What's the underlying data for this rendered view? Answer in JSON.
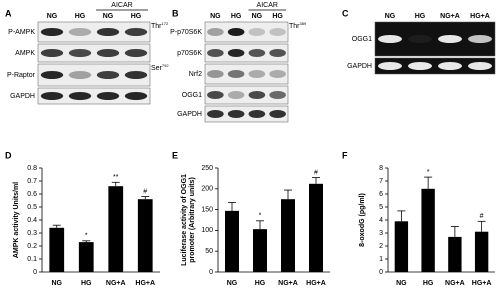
{
  "panels": [
    {
      "label": "A",
      "group": "AICAR",
      "lanes": [
        "NG",
        "HG",
        "NG",
        "HG"
      ],
      "rows": [
        {
          "name": "P-AMPK",
          "site": "Thr",
          "site_sup": "172"
        },
        {
          "name": "AMPK"
        },
        {
          "name": "P-Raptor",
          "site": "Ser",
          "site_sup": "792"
        },
        {
          "name": "GAPDH"
        }
      ]
    },
    {
      "label": "B",
      "group": "AICAR",
      "lanes": [
        "NG",
        "HG",
        "NG",
        "HG"
      ],
      "rows": [
        {
          "name": "P-p70S6K",
          "site": "Thr",
          "site_sup": "389"
        },
        {
          "name": "p70S6K"
        },
        {
          "name": "Nrf2"
        },
        {
          "name": "OGG1"
        },
        {
          "name": "GAPDH"
        }
      ]
    },
    {
      "label": "C",
      "lanes": [
        "NG",
        "HG",
        "NG+A",
        "HG+A"
      ],
      "rows": [
        {
          "name": "OGG1"
        },
        {
          "name": "GAPDH"
        }
      ]
    }
  ],
  "chart_data": [
    {
      "type": "bar",
      "label": "D",
      "ylabel": [
        "AMPK activity Units/ml"
      ],
      "categories": [
        "NG",
        "HG",
        "NG+A",
        "HG+A"
      ],
      "values": [
        0.34,
        0.23,
        0.66,
        0.56
      ],
      "errors": [
        0.02,
        0.01,
        0.03,
        0.02
      ],
      "markers": [
        null,
        "*",
        "**",
        "#"
      ],
      "color": "#000000",
      "ylim": [
        0,
        0.8
      ],
      "yticks": [
        0,
        0.1,
        0.2,
        0.3,
        0.4,
        0.5,
        0.6,
        0.7,
        0.8
      ]
    },
    {
      "type": "bar",
      "label": "E",
      "ylabel": [
        "Luciferase activity of OGG1",
        "promoter (Arbitrary units)"
      ],
      "categories": [
        "NG",
        "HG",
        "NG+A",
        "HG+A"
      ],
      "values": [
        147,
        103,
        175,
        212
      ],
      "errors": [
        20,
        20,
        22,
        15
      ],
      "markers": [
        null,
        "*",
        null,
        "#"
      ],
      "color": "#000000",
      "ylim": [
        0,
        250
      ],
      "yticks": [
        0,
        50,
        100,
        150,
        200,
        250
      ]
    },
    {
      "type": "bar",
      "label": "F",
      "ylabel": [
        "8-oxodG (pg/ml)"
      ],
      "categories": [
        "NG",
        "HG",
        "NG+A",
        "HG+A"
      ],
      "values": [
        3.9,
        6.4,
        2.7,
        3.1
      ],
      "errors": [
        0.8,
        0.9,
        0.8,
        0.8
      ],
      "markers": [
        null,
        "*",
        null,
        "#"
      ],
      "color": "#000000",
      "ylim": [
        0,
        8
      ],
      "yticks": [
        0,
        1,
        2,
        3,
        4,
        5,
        6,
        7,
        8
      ]
    }
  ]
}
